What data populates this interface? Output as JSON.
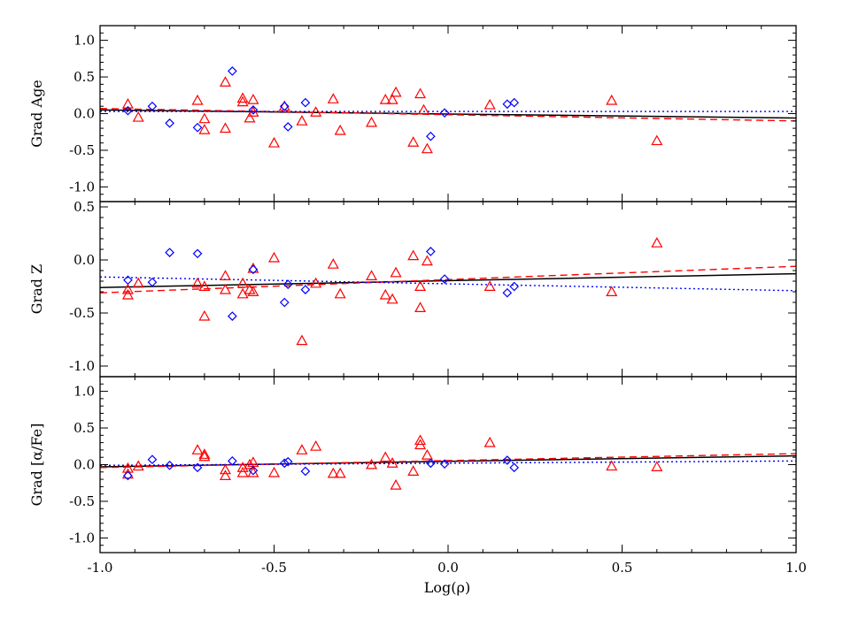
{
  "chart_data": [
    {
      "type": "scatter",
      "ylabel": "Grad  Age",
      "xlabel": "",
      "xlim": [
        -1.0,
        1.0
      ],
      "ylim": [
        -1.2,
        1.2
      ],
      "yticks": [
        "-1.0",
        "-0.5",
        "0.0",
        "0.5",
        "1.0"
      ],
      "ytick_values": [
        -1.0,
        -0.5,
        0.0,
        0.5,
        1.0
      ],
      "series": [
        {
          "marker": "triangle",
          "color": "#ff0000",
          "points": [
            [
              -0.92,
              0.13
            ],
            [
              -0.89,
              -0.05
            ],
            [
              -0.72,
              0.18
            ],
            [
              -0.7,
              -0.07
            ],
            [
              -0.7,
              -0.22
            ],
            [
              -0.64,
              0.43
            ],
            [
              -0.64,
              -0.2
            ],
            [
              -0.59,
              0.21
            ],
            [
              -0.59,
              0.16
            ],
            [
              -0.57,
              -0.06
            ],
            [
              -0.56,
              0.19
            ],
            [
              -0.56,
              0.02
            ],
            [
              -0.5,
              -0.4
            ],
            [
              -0.47,
              0.1
            ],
            [
              -0.42,
              -0.1
            ],
            [
              -0.38,
              0.02
            ],
            [
              -0.33,
              0.2
            ],
            [
              -0.31,
              -0.23
            ],
            [
              -0.22,
              -0.12
            ],
            [
              -0.18,
              0.19
            ],
            [
              -0.16,
              0.19
            ],
            [
              -0.15,
              0.29
            ],
            [
              -0.1,
              -0.39
            ],
            [
              -0.08,
              0.27
            ],
            [
              -0.07,
              0.05
            ],
            [
              -0.06,
              -0.48
            ],
            [
              0.12,
              0.12
            ],
            [
              0.47,
              0.18
            ],
            [
              0.6,
              -0.37
            ]
          ]
        },
        {
          "marker": "diamond",
          "color": "#0000ff",
          "points": [
            [
              -0.92,
              0.04
            ],
            [
              -0.85,
              0.1
            ],
            [
              -0.8,
              -0.13
            ],
            [
              -0.72,
              -0.19
            ],
            [
              -0.62,
              0.58
            ],
            [
              -0.56,
              0.05
            ],
            [
              -0.47,
              0.1
            ],
            [
              -0.46,
              -0.18
            ],
            [
              -0.41,
              0.15
            ],
            [
              -0.05,
              -0.31
            ],
            [
              -0.01,
              0.01
            ],
            [
              0.17,
              0.13
            ],
            [
              0.19,
              0.15
            ]
          ]
        }
      ],
      "fits": [
        {
          "style": "solid",
          "color": "#000000",
          "x": [
            -1.0,
            1.0
          ],
          "y": [
            0.05,
            -0.06
          ]
        },
        {
          "style": "dashed",
          "color": "#ff0000",
          "x": [
            -1.0,
            1.0
          ],
          "y": [
            0.07,
            -0.1
          ]
        },
        {
          "style": "dotted",
          "color": "#0000ff",
          "x": [
            -1.0,
            1.0
          ],
          "y": [
            0.03,
            0.03
          ]
        }
      ]
    },
    {
      "type": "scatter",
      "ylabel": "Grad  Z",
      "xlabel": "",
      "xlim": [
        -1.0,
        1.0
      ],
      "ylim": [
        -1.1,
        0.55
      ],
      "yticks": [
        "-1.0",
        "-0.5",
        "0.0",
        "0.5"
      ],
      "ytick_values": [
        -1.0,
        -0.5,
        0.0,
        0.5
      ],
      "series": [
        {
          "marker": "triangle",
          "color": "#ff0000",
          "points": [
            [
              -0.92,
              -0.28
            ],
            [
              -0.92,
              -0.33
            ],
            [
              -0.89,
              -0.22
            ],
            [
              -0.72,
              -0.22
            ],
            [
              -0.7,
              -0.25
            ],
            [
              -0.7,
              -0.53
            ],
            [
              -0.64,
              -0.15
            ],
            [
              -0.64,
              -0.28
            ],
            [
              -0.59,
              -0.22
            ],
            [
              -0.59,
              -0.32
            ],
            [
              -0.57,
              -0.28
            ],
            [
              -0.56,
              -0.08
            ],
            [
              -0.56,
              -0.3
            ],
            [
              -0.5,
              0.02
            ],
            [
              -0.42,
              -0.76
            ],
            [
              -0.38,
              -0.22
            ],
            [
              -0.33,
              -0.04
            ],
            [
              -0.31,
              -0.32
            ],
            [
              -0.22,
              -0.15
            ],
            [
              -0.18,
              -0.33
            ],
            [
              -0.16,
              -0.37
            ],
            [
              -0.15,
              -0.12
            ],
            [
              -0.1,
              0.04
            ],
            [
              -0.08,
              -0.45
            ],
            [
              -0.08,
              -0.25
            ],
            [
              -0.06,
              -0.01
            ],
            [
              0.12,
              -0.25
            ],
            [
              0.47,
              -0.3
            ],
            [
              0.6,
              0.16
            ]
          ]
        },
        {
          "marker": "diamond",
          "color": "#0000ff",
          "points": [
            [
              -0.92,
              -0.19
            ],
            [
              -0.85,
              -0.21
            ],
            [
              -0.8,
              0.07
            ],
            [
              -0.72,
              0.06
            ],
            [
              -0.62,
              -0.53
            ],
            [
              -0.56,
              -0.09
            ],
            [
              -0.47,
              -0.4
            ],
            [
              -0.46,
              -0.23
            ],
            [
              -0.41,
              -0.28
            ],
            [
              -0.05,
              0.08
            ],
            [
              -0.01,
              -0.18
            ],
            [
              0.17,
              -0.31
            ],
            [
              0.19,
              -0.25
            ]
          ]
        }
      ],
      "fits": [
        {
          "style": "solid",
          "color": "#000000",
          "x": [
            -1.0,
            1.0
          ],
          "y": [
            -0.26,
            -0.13
          ]
        },
        {
          "style": "dashed",
          "color": "#ff0000",
          "x": [
            -1.0,
            1.0
          ],
          "y": [
            -0.31,
            -0.06
          ]
        },
        {
          "style": "dotted",
          "color": "#0000ff",
          "x": [
            -1.0,
            1.0
          ],
          "y": [
            -0.16,
            -0.29
          ]
        }
      ]
    },
    {
      "type": "scatter",
      "ylabel": "Grad  [α/Fe]",
      "xlabel": "Log(ρ)",
      "xlim": [
        -1.0,
        1.0
      ],
      "ylim": [
        -1.2,
        1.2
      ],
      "yticks": [
        "-1.0",
        "-0.5",
        "0.0",
        "0.5",
        "1.0"
      ],
      "ytick_values": [
        -1.0,
        -0.5,
        0.0,
        0.5,
        1.0
      ],
      "xticks": [
        "-1.0",
        "-0.5",
        "0.0",
        "0.5",
        "1.0"
      ],
      "xtick_values": [
        -1.0,
        -0.5,
        0.0,
        0.5,
        1.0
      ],
      "series": [
        {
          "marker": "triangle",
          "color": "#ff0000",
          "points": [
            [
              -0.92,
              -0.05
            ],
            [
              -0.92,
              -0.13
            ],
            [
              -0.89,
              -0.02
            ],
            [
              -0.72,
              0.2
            ],
            [
              -0.7,
              0.14
            ],
            [
              -0.7,
              0.11
            ],
            [
              -0.64,
              -0.07
            ],
            [
              -0.64,
              -0.15
            ],
            [
              -0.59,
              -0.04
            ],
            [
              -0.59,
              -0.11
            ],
            [
              -0.57,
              0.0
            ],
            [
              -0.56,
              -0.11
            ],
            [
              -0.56,
              0.03
            ],
            [
              -0.5,
              -0.11
            ],
            [
              -0.42,
              0.2
            ],
            [
              -0.38,
              0.25
            ],
            [
              -0.33,
              -0.12
            ],
            [
              -0.31,
              -0.12
            ],
            [
              -0.22,
              0.0
            ],
            [
              -0.18,
              0.1
            ],
            [
              -0.16,
              0.02
            ],
            [
              -0.15,
              -0.28
            ],
            [
              -0.1,
              -0.09
            ],
            [
              -0.08,
              0.27
            ],
            [
              -0.08,
              0.33
            ],
            [
              -0.06,
              0.13
            ],
            [
              0.12,
              0.3
            ],
            [
              0.47,
              -0.02
            ],
            [
              0.6,
              -0.03
            ]
          ]
        },
        {
          "marker": "diamond",
          "color": "#0000ff",
          "points": [
            [
              -0.92,
              -0.15
            ],
            [
              -0.85,
              0.07
            ],
            [
              -0.8,
              -0.01
            ],
            [
              -0.72,
              -0.04
            ],
            [
              -0.62,
              0.05
            ],
            [
              -0.56,
              -0.08
            ],
            [
              -0.47,
              0.02
            ],
            [
              -0.46,
              0.04
            ],
            [
              -0.41,
              -0.09
            ],
            [
              -0.05,
              0.02
            ],
            [
              -0.01,
              0.01
            ],
            [
              0.17,
              0.06
            ],
            [
              0.19,
              -0.04
            ]
          ]
        }
      ],
      "fits": [
        {
          "style": "solid",
          "color": "#000000",
          "x": [
            -1.0,
            1.0
          ],
          "y": [
            -0.03,
            0.12
          ]
        },
        {
          "style": "dashed",
          "color": "#ff0000",
          "x": [
            -1.0,
            1.0
          ],
          "y": [
            -0.04,
            0.15
          ]
        },
        {
          "style": "dotted",
          "color": "#0000ff",
          "x": [
            -1.0,
            1.0
          ],
          "y": [
            -0.01,
            0.05
          ]
        }
      ]
    }
  ]
}
